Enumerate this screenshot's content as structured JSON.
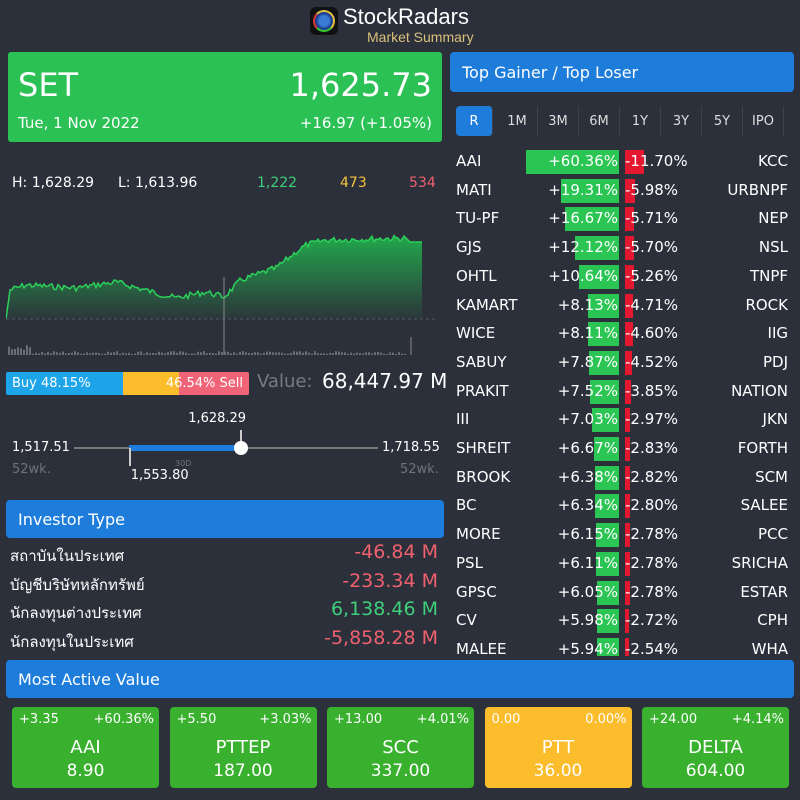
{
  "header": {
    "title": "StockRadars",
    "subtitle": "Market Summary"
  },
  "index": {
    "name": "SET",
    "value": "1,625.73",
    "date": "Tue, 1 Nov 2022",
    "change": "+16.97 (+1.05%)",
    "high": "H: 1,628.29",
    "low": "L: 1,613.96",
    "advances": "1,222",
    "unchanged": "473",
    "declines": "534"
  },
  "buy_sell": {
    "buy_label": "Buy 48.15%",
    "sell_label": "46.54% Sell",
    "buy_pct": 48.15,
    "sell_pct": 46.54,
    "value_label": "Value:",
    "value": "68,447.97 M"
  },
  "range": {
    "low_52wk": "1,517.51",
    "high_52wk": "1,718.55",
    "low_30d": "1,553.80",
    "current": "1,628.29",
    "wk_label": "52wk.",
    "d30_label": "30D",
    "current_fraction": 0.55,
    "d30_fraction": 0.18
  },
  "investor": {
    "title": "Investor Type",
    "rows": [
      {
        "label": "สถาบันในประเทศ",
        "value": "-46.84 M",
        "sign": -1
      },
      {
        "label": "บัญชีบริษัทหลักทรัพย์",
        "value": "-233.34 M",
        "sign": -1
      },
      {
        "label": "นักลงทุนต่างประเทศ",
        "value": "6,138.46 M",
        "sign": 1
      },
      {
        "label": "นักลงทุนในประเทศ",
        "value": "-5,858.28 M",
        "sign": -1
      }
    ]
  },
  "movers": {
    "title": "Top Gainer / Top Loser",
    "tabs": [
      "R",
      "1M",
      "3M",
      "6M",
      "1Y",
      "3Y",
      "5Y",
      "IPO"
    ],
    "active_tab": 0,
    "rows": [
      {
        "g": "AAI",
        "gp": "+60.36%",
        "gv": 60.36,
        "l": "KCC",
        "lp": "-11.70%",
        "lv": 11.7
      },
      {
        "g": "MATI",
        "gp": "+19.31%",
        "gv": 19.31,
        "l": "URBNPF",
        "lp": "-5.98%",
        "lv": 5.98
      },
      {
        "g": "TU-PF",
        "gp": "+16.67%",
        "gv": 16.67,
        "l": "NEP",
        "lp": "-5.71%",
        "lv": 5.71
      },
      {
        "g": "GJS",
        "gp": "+12.12%",
        "gv": 12.12,
        "l": "NSL",
        "lp": "-5.70%",
        "lv": 5.7
      },
      {
        "g": "OHTL",
        "gp": "+10.64%",
        "gv": 10.64,
        "l": "TNPF",
        "lp": "-5.26%",
        "lv": 5.26
      },
      {
        "g": "KAMART",
        "gp": "+8.13%",
        "gv": 8.13,
        "l": "ROCK",
        "lp": "-4.71%",
        "lv": 4.71
      },
      {
        "g": "WICE",
        "gp": "+8.11%",
        "gv": 8.11,
        "l": "IIG",
        "lp": "-4.60%",
        "lv": 4.6
      },
      {
        "g": "SABUY",
        "gp": "+7.87%",
        "gv": 7.87,
        "l": "PDJ",
        "lp": "-4.52%",
        "lv": 4.52
      },
      {
        "g": "PRAKIT",
        "gp": "+7.52%",
        "gv": 7.52,
        "l": "NATION",
        "lp": "-3.85%",
        "lv": 3.85
      },
      {
        "g": "III",
        "gp": "+7.03%",
        "gv": 7.03,
        "l": "JKN",
        "lp": "-2.97%",
        "lv": 2.97
      },
      {
        "g": "SHREIT",
        "gp": "+6.67%",
        "gv": 6.67,
        "l": "FORTH",
        "lp": "-2.83%",
        "lv": 2.83
      },
      {
        "g": "BROOK",
        "gp": "+6.38%",
        "gv": 6.38,
        "l": "SCM",
        "lp": "-2.82%",
        "lv": 2.82
      },
      {
        "g": "BC",
        "gp": "+6.34%",
        "gv": 6.34,
        "l": "SALEE",
        "lp": "-2.80%",
        "lv": 2.8
      },
      {
        "g": "MORE",
        "gp": "+6.15%",
        "gv": 6.15,
        "l": "PCC",
        "lp": "-2.78%",
        "lv": 2.78
      },
      {
        "g": "PSL",
        "gp": "+6.11%",
        "gv": 6.11,
        "l": "SRICHA",
        "lp": "-2.78%",
        "lv": 2.78
      },
      {
        "g": "GPSC",
        "gp": "+6.05%",
        "gv": 6.05,
        "l": "ESTAR",
        "lp": "-2.78%",
        "lv": 2.78
      },
      {
        "g": "CV",
        "gp": "+5.98%",
        "gv": 5.98,
        "l": "CPH",
        "lp": "-2.72%",
        "lv": 2.72
      },
      {
        "g": "MALEE",
        "gp": "+5.94%",
        "gv": 5.94,
        "l": "WHA",
        "lp": "-2.54%",
        "lv": 2.54
      }
    ]
  },
  "active": {
    "title": "Most Active Value",
    "cards": [
      {
        "chg": "+3.35",
        "pct": "+60.36%",
        "sym": "AAI",
        "price": "8.90",
        "color": "#39b12e"
      },
      {
        "chg": "+5.50",
        "pct": "+3.03%",
        "sym": "PTTEP",
        "price": "187.00",
        "color": "#39b12e"
      },
      {
        "chg": "+13.00",
        "pct": "+4.01%",
        "sym": "SCC",
        "price": "337.00",
        "color": "#39b12e"
      },
      {
        "chg": "0.00",
        "pct": "0.00%",
        "sym": "PTT",
        "price": "36.00",
        "color": "#fbbd2c"
      },
      {
        "chg": "+24.00",
        "pct": "+4.14%",
        "sym": "DELTA",
        "price": "604.00",
        "color": "#39b12e"
      }
    ]
  },
  "colors": {
    "green": "#2bc155",
    "red": "#f0606e",
    "yellow": "#fbbd2c",
    "blue": "#1e7ddb",
    "buy": "#1ea5e9",
    "sell": "#f06478"
  }
}
